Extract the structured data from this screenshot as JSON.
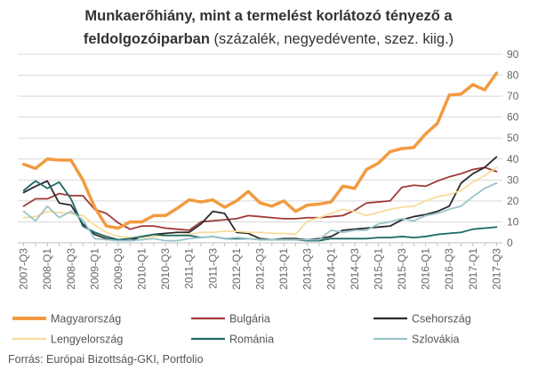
{
  "chart_data": {
    "type": "line",
    "title_bold_1": "Munkaerőhiány, mint a termelést korlátozó tényező  a",
    "title_bold_2": "feldolgozóiparban",
    "title_rest": " (százalék, negyedévente, szez. kiig.)",
    "ylim": [
      0,
      90
    ],
    "y_ticks": [
      "0",
      "10",
      "20",
      "30",
      "40",
      "50",
      "60",
      "70",
      "80",
      "90"
    ],
    "grid": true,
    "legend_position": "bottom",
    "x_tick_labels": [
      "2007-Q3",
      "2008-Q1",
      "2008-Q3",
      "2009-Q1",
      "2009-Q3",
      "2010-Q1",
      "2010-Q3",
      "2011-Q1",
      "2011-Q3",
      "2012-Q1",
      "2012-Q3",
      "2013-Q1",
      "2013-Q3",
      "2014-Q1",
      "2014-Q3",
      "2015-Q1",
      "2015-Q3",
      "2016-Q1",
      "2016-Q3",
      "2017-Q1",
      "2017-Q3"
    ],
    "x": [
      "2007-Q3",
      "2007-Q4",
      "2008-Q1",
      "2008-Q2",
      "2008-Q3",
      "2008-Q4",
      "2009-Q1",
      "2009-Q2",
      "2009-Q3",
      "2009-Q4",
      "2010-Q1",
      "2010-Q2",
      "2010-Q3",
      "2010-Q4",
      "2011-Q1",
      "2011-Q2",
      "2011-Q3",
      "2011-Q4",
      "2012-Q1",
      "2012-Q2",
      "2012-Q3",
      "2012-Q4",
      "2013-Q1",
      "2013-Q2",
      "2013-Q3",
      "2013-Q4",
      "2014-Q1",
      "2014-Q2",
      "2014-Q3",
      "2014-Q4",
      "2015-Q1",
      "2015-Q2",
      "2015-Q3",
      "2015-Q4",
      "2016-Q1",
      "2016-Q2",
      "2016-Q3",
      "2016-Q4",
      "2017-Q1",
      "2017-Q2",
      "2017-Q3"
    ],
    "series": [
      {
        "name": "Magyarország",
        "color": "#f29a3f",
        "width": 3.5,
        "values": [
          37.5,
          35.5,
          40,
          39.5,
          39.5,
          30,
          17,
          8,
          7,
          10,
          10,
          13,
          13,
          16.5,
          20.5,
          19.5,
          20.5,
          17,
          20,
          24.5,
          19,
          17.5,
          20,
          15,
          18,
          18.5,
          19.5,
          27,
          26,
          35,
          38,
          43.5,
          45,
          45.5,
          52,
          57,
          70.5,
          71,
          75.5,
          73,
          81
        ]
      },
      {
        "name": "Bulgária",
        "color": "#9e3a38",
        "width": 1.8,
        "values": [
          17.5,
          21,
          21,
          23.5,
          22.5,
          22.5,
          16,
          14,
          9.5,
          6.5,
          8,
          8,
          7,
          6.5,
          6,
          10,
          10.5,
          11,
          11.5,
          13,
          12.5,
          12,
          11.5,
          11.5,
          12,
          12,
          12.5,
          13,
          15.5,
          19,
          19.5,
          20,
          26.5,
          27.5,
          27,
          29.5,
          31.5,
          33,
          35,
          36,
          34
        ]
      },
      {
        "name": "Csehország",
        "color": "#2b2b2b",
        "width": 1.8,
        "values": [
          24,
          27,
          29.5,
          19,
          18,
          9,
          4,
          2,
          1,
          1,
          3,
          4,
          4.5,
          5,
          5,
          9,
          15,
          14,
          5,
          4.5,
          2,
          1.5,
          2,
          2,
          1.5,
          2,
          3,
          6,
          6.5,
          7,
          7.5,
          8,
          11,
          12.5,
          13.5,
          15,
          17.5,
          28.5,
          33,
          36,
          41
        ]
      },
      {
        "name": "Lengyelország",
        "color": "#f7dc9b",
        "width": 1.8,
        "values": [
          12,
          12.5,
          15,
          14.5,
          14,
          13,
          8.5,
          5,
          3,
          2.5,
          2.5,
          3,
          3.5,
          3.5,
          4,
          5,
          5,
          5.5,
          5.5,
          5,
          5,
          4.5,
          4.5,
          4,
          10.5,
          12,
          14,
          16,
          15,
          13,
          14.5,
          16,
          17,
          17.5,
          20,
          22,
          23,
          25,
          29,
          32,
          36
        ]
      },
      {
        "name": "Románia",
        "color": "#1d6a65",
        "width": 1.8,
        "values": [
          25,
          29.5,
          26,
          29,
          21,
          8,
          5,
          3,
          1.5,
          2,
          3,
          4,
          3.5,
          3.5,
          3.5,
          2.5,
          3,
          2,
          2,
          2,
          1.5,
          1.5,
          1.5,
          1.5,
          1,
          1,
          2,
          2,
          2,
          2,
          2.5,
          2.5,
          3,
          2.5,
          3,
          4,
          4.5,
          5,
          6.5,
          7,
          7.5
        ]
      },
      {
        "name": "Szlovákia",
        "color": "#9bc4cc",
        "width": 1.8,
        "values": [
          15,
          10.5,
          17.5,
          12,
          15,
          11,
          2,
          1.5,
          1,
          1,
          1.5,
          2,
          1,
          1,
          2,
          2.5,
          3,
          2,
          2.5,
          2,
          1.5,
          1.5,
          1.5,
          1.5,
          1.5,
          1.5,
          6,
          5,
          6,
          6,
          9,
          10,
          11.5,
          10.5,
          13,
          14,
          16,
          17.5,
          22,
          26,
          28.5
        ]
      }
    ],
    "source": "Forrás: Európai Bizottság-GKI, Portfolio"
  }
}
